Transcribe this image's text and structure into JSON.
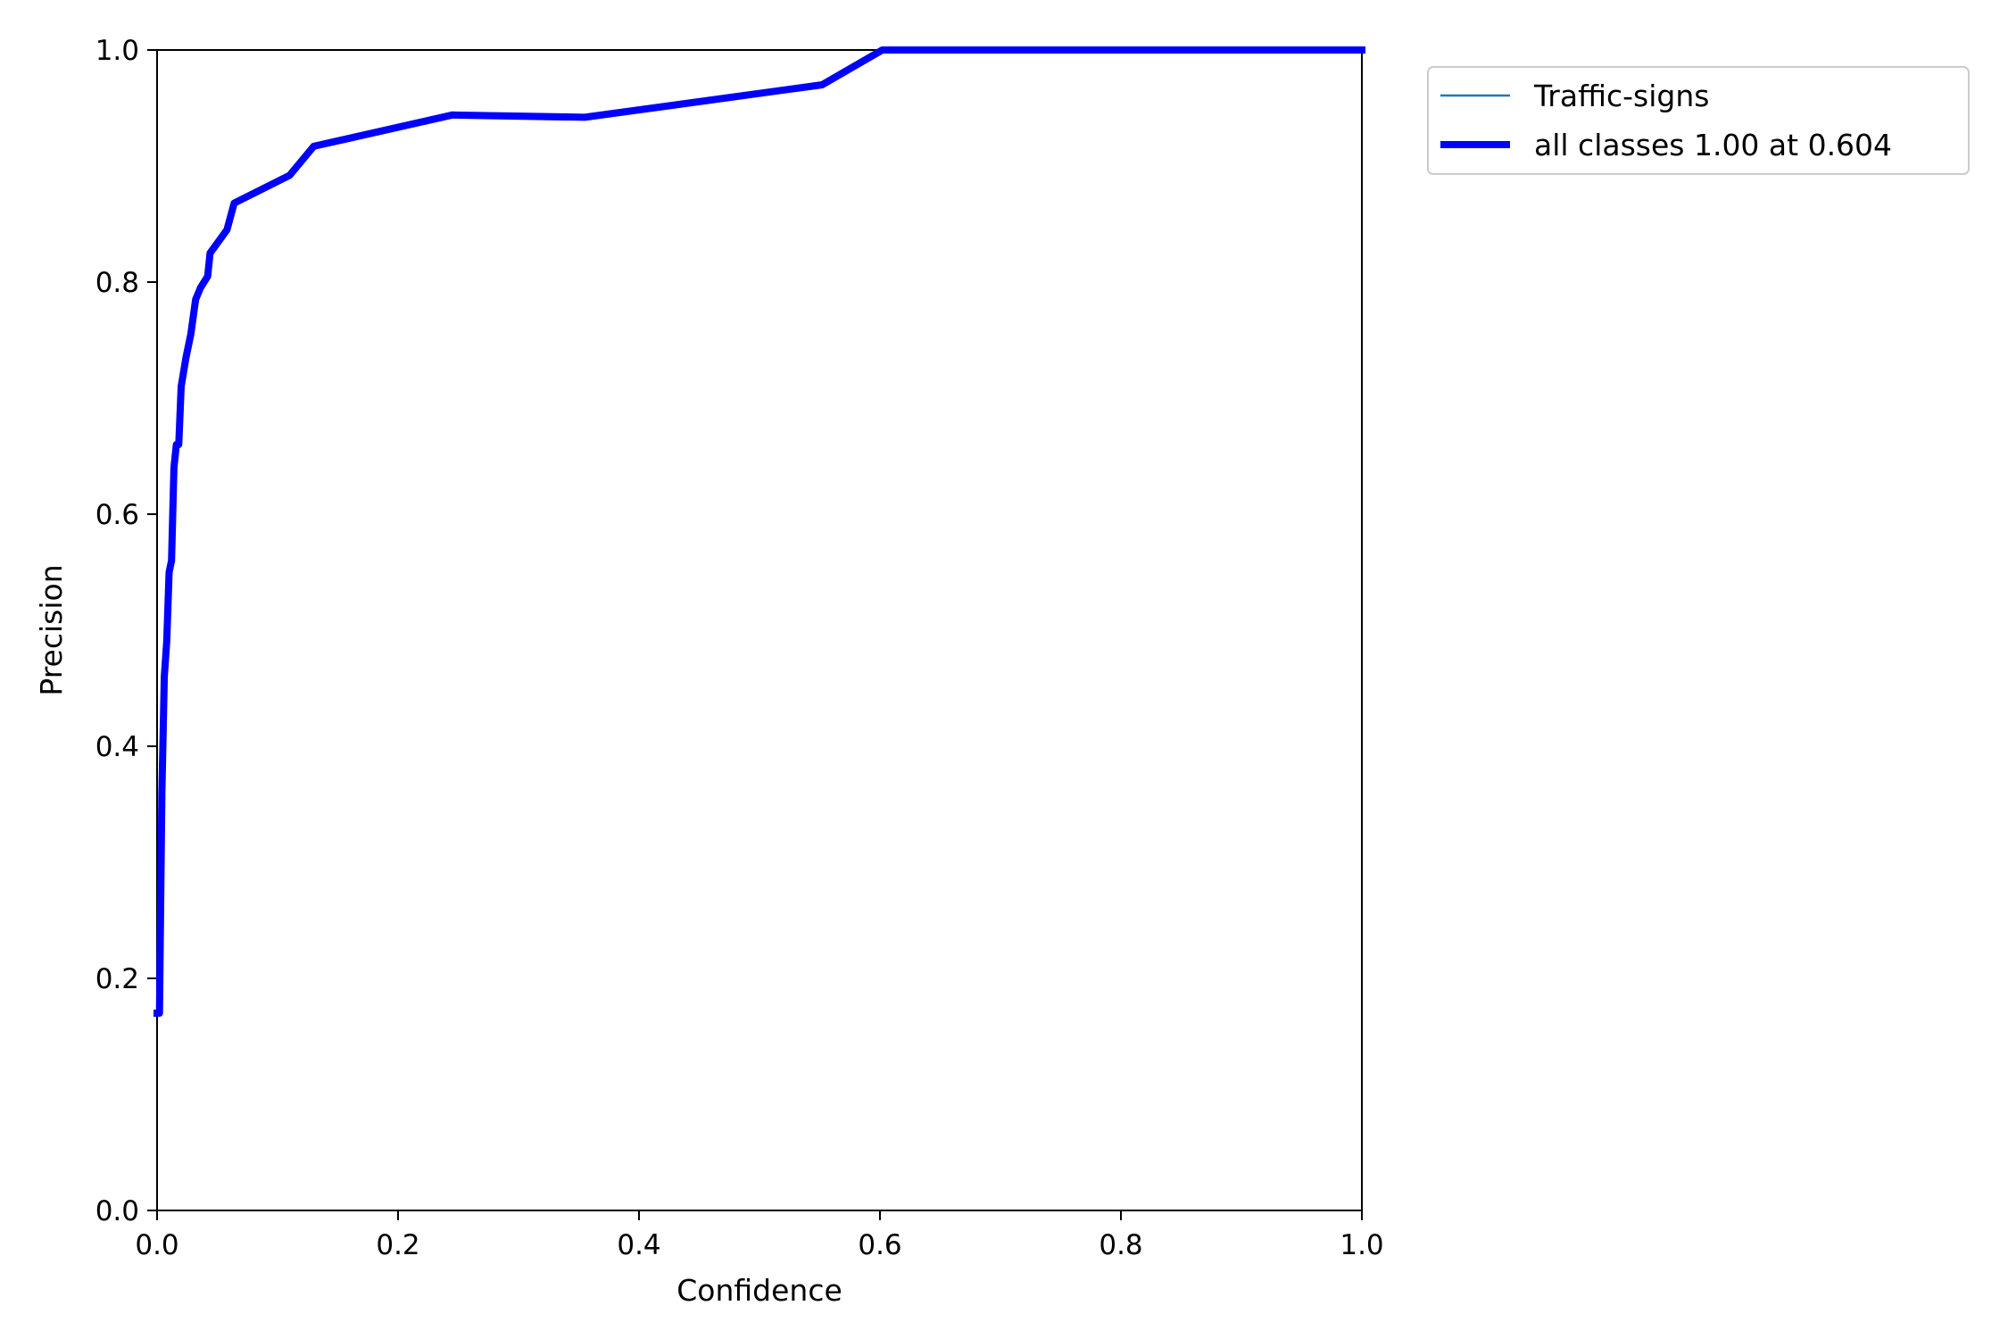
{
  "chart_data": {
    "type": "line",
    "title": "",
    "xlabel": "Confidence",
    "ylabel": "Precision",
    "xlim": [
      0,
      1
    ],
    "ylim": [
      0,
      1
    ],
    "xticks": [
      "0.0",
      "0.2",
      "0.4",
      "0.6",
      "0.8",
      "1.0"
    ],
    "yticks": [
      "0.0",
      "0.2",
      "0.4",
      "0.6",
      "0.8",
      "1.0"
    ],
    "grid": false,
    "legend_position": "outside-top-right",
    "series": [
      {
        "name": "Traffic-signs",
        "color": "#1f77b4",
        "style": "thin",
        "x": [
          0.0,
          0.002,
          0.004,
          0.006,
          0.008,
          0.01,
          0.012,
          0.014,
          0.016,
          0.018,
          0.02,
          0.024,
          0.028,
          0.032,
          0.036,
          0.042,
          0.044,
          0.058,
          0.064,
          0.11,
          0.13,
          0.245,
          0.355,
          0.552,
          0.602,
          0.65,
          1.0
        ],
        "y": [
          0.17,
          0.17,
          0.36,
          0.46,
          0.49,
          0.55,
          0.56,
          0.64,
          0.66,
          0.66,
          0.71,
          0.735,
          0.755,
          0.785,
          0.795,
          0.805,
          0.825,
          0.845,
          0.868,
          0.892,
          0.917,
          0.944,
          0.942,
          0.97,
          1.0,
          1.0,
          1.0
        ]
      },
      {
        "name": "all classes 1.00 at 0.604",
        "color": "#0000ff",
        "style": "thick",
        "x": [
          0.0,
          0.002,
          0.004,
          0.006,
          0.008,
          0.01,
          0.012,
          0.014,
          0.016,
          0.018,
          0.02,
          0.024,
          0.028,
          0.032,
          0.036,
          0.042,
          0.044,
          0.058,
          0.064,
          0.11,
          0.13,
          0.245,
          0.355,
          0.552,
          0.602,
          0.65,
          1.0
        ],
        "y": [
          0.17,
          0.17,
          0.36,
          0.46,
          0.49,
          0.55,
          0.56,
          0.64,
          0.66,
          0.66,
          0.71,
          0.735,
          0.755,
          0.785,
          0.795,
          0.805,
          0.825,
          0.845,
          0.868,
          0.892,
          0.917,
          0.944,
          0.942,
          0.97,
          1.0,
          1.0,
          1.0
        ]
      }
    ]
  }
}
